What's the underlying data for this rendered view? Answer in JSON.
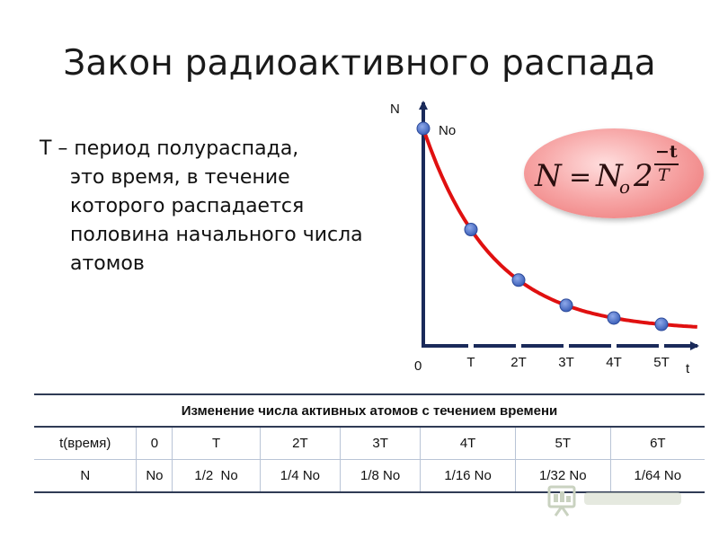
{
  "slide": {
    "title": "Закон радиоактивного распада",
    "definition_first": "Т – период полураспада,",
    "definition_rest": "это время, в течение которого распадается половина начального числа атомов"
  },
  "graph": {
    "y_axis_label": "N",
    "x_axis_label": "t",
    "origin_label": "0",
    "initial_label": "No",
    "tick_labels": [
      "T",
      "2T",
      "3T",
      "4T",
      "5T"
    ],
    "curve_color": "#e01010",
    "point_color": "#4a6fc7",
    "formula": {
      "lhs": "N",
      "equals": "=",
      "base": "N",
      "subscript": "o",
      "two": "2",
      "exp_numerator": "−t",
      "exp_denominator": "T"
    }
  },
  "table": {
    "title": "Изменение числа активных атомов с течением времени",
    "rows": [
      [
        "t(время)",
        "0",
        "T",
        "2T",
        "3T",
        "4T",
        "5T",
        "6T"
      ],
      [
        "N",
        "No",
        "1/2  No",
        "1/4 No",
        "1/8 No",
        "1/16 No",
        "1/32 No",
        "1/64 No"
      ]
    ]
  },
  "footer": {
    "logo_icon": "presentation-screen-icon"
  }
}
